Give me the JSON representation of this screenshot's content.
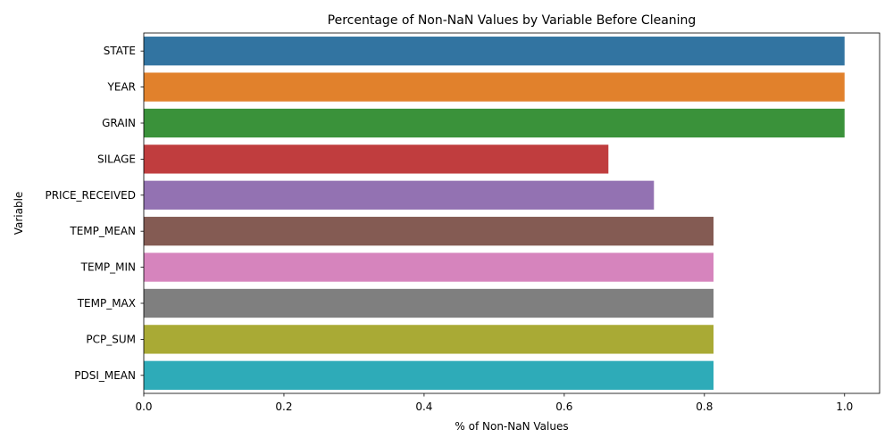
{
  "chart_data": {
    "type": "bar",
    "orientation": "horizontal",
    "title": "Percentage of Non-NaN Values by Variable Before Cleaning",
    "xlabel": "% of Non-NaN Values",
    "ylabel": "Variable",
    "xlim": [
      0,
      1.05
    ],
    "xticks": [
      "0.0",
      "0.2",
      "0.4",
      "0.6",
      "0.8",
      "1.0"
    ],
    "grid": false,
    "categories": [
      "STATE",
      "YEAR",
      "GRAIN",
      "SILAGE",
      "PRICE_RECEIVED",
      "TEMP_MEAN",
      "TEMP_MIN",
      "TEMP_MAX",
      "PCP_SUM",
      "PDSI_MEAN"
    ],
    "values": [
      1.0,
      1.0,
      1.0,
      0.663,
      0.728,
      0.813,
      0.813,
      0.813,
      0.813,
      0.813
    ],
    "colors": [
      "#3274a1",
      "#e1812c",
      "#3a923a",
      "#c03d3e",
      "#9372b2",
      "#845b53",
      "#d684bd",
      "#7f7f7f",
      "#a9aa35",
      "#2eabb8"
    ]
  }
}
